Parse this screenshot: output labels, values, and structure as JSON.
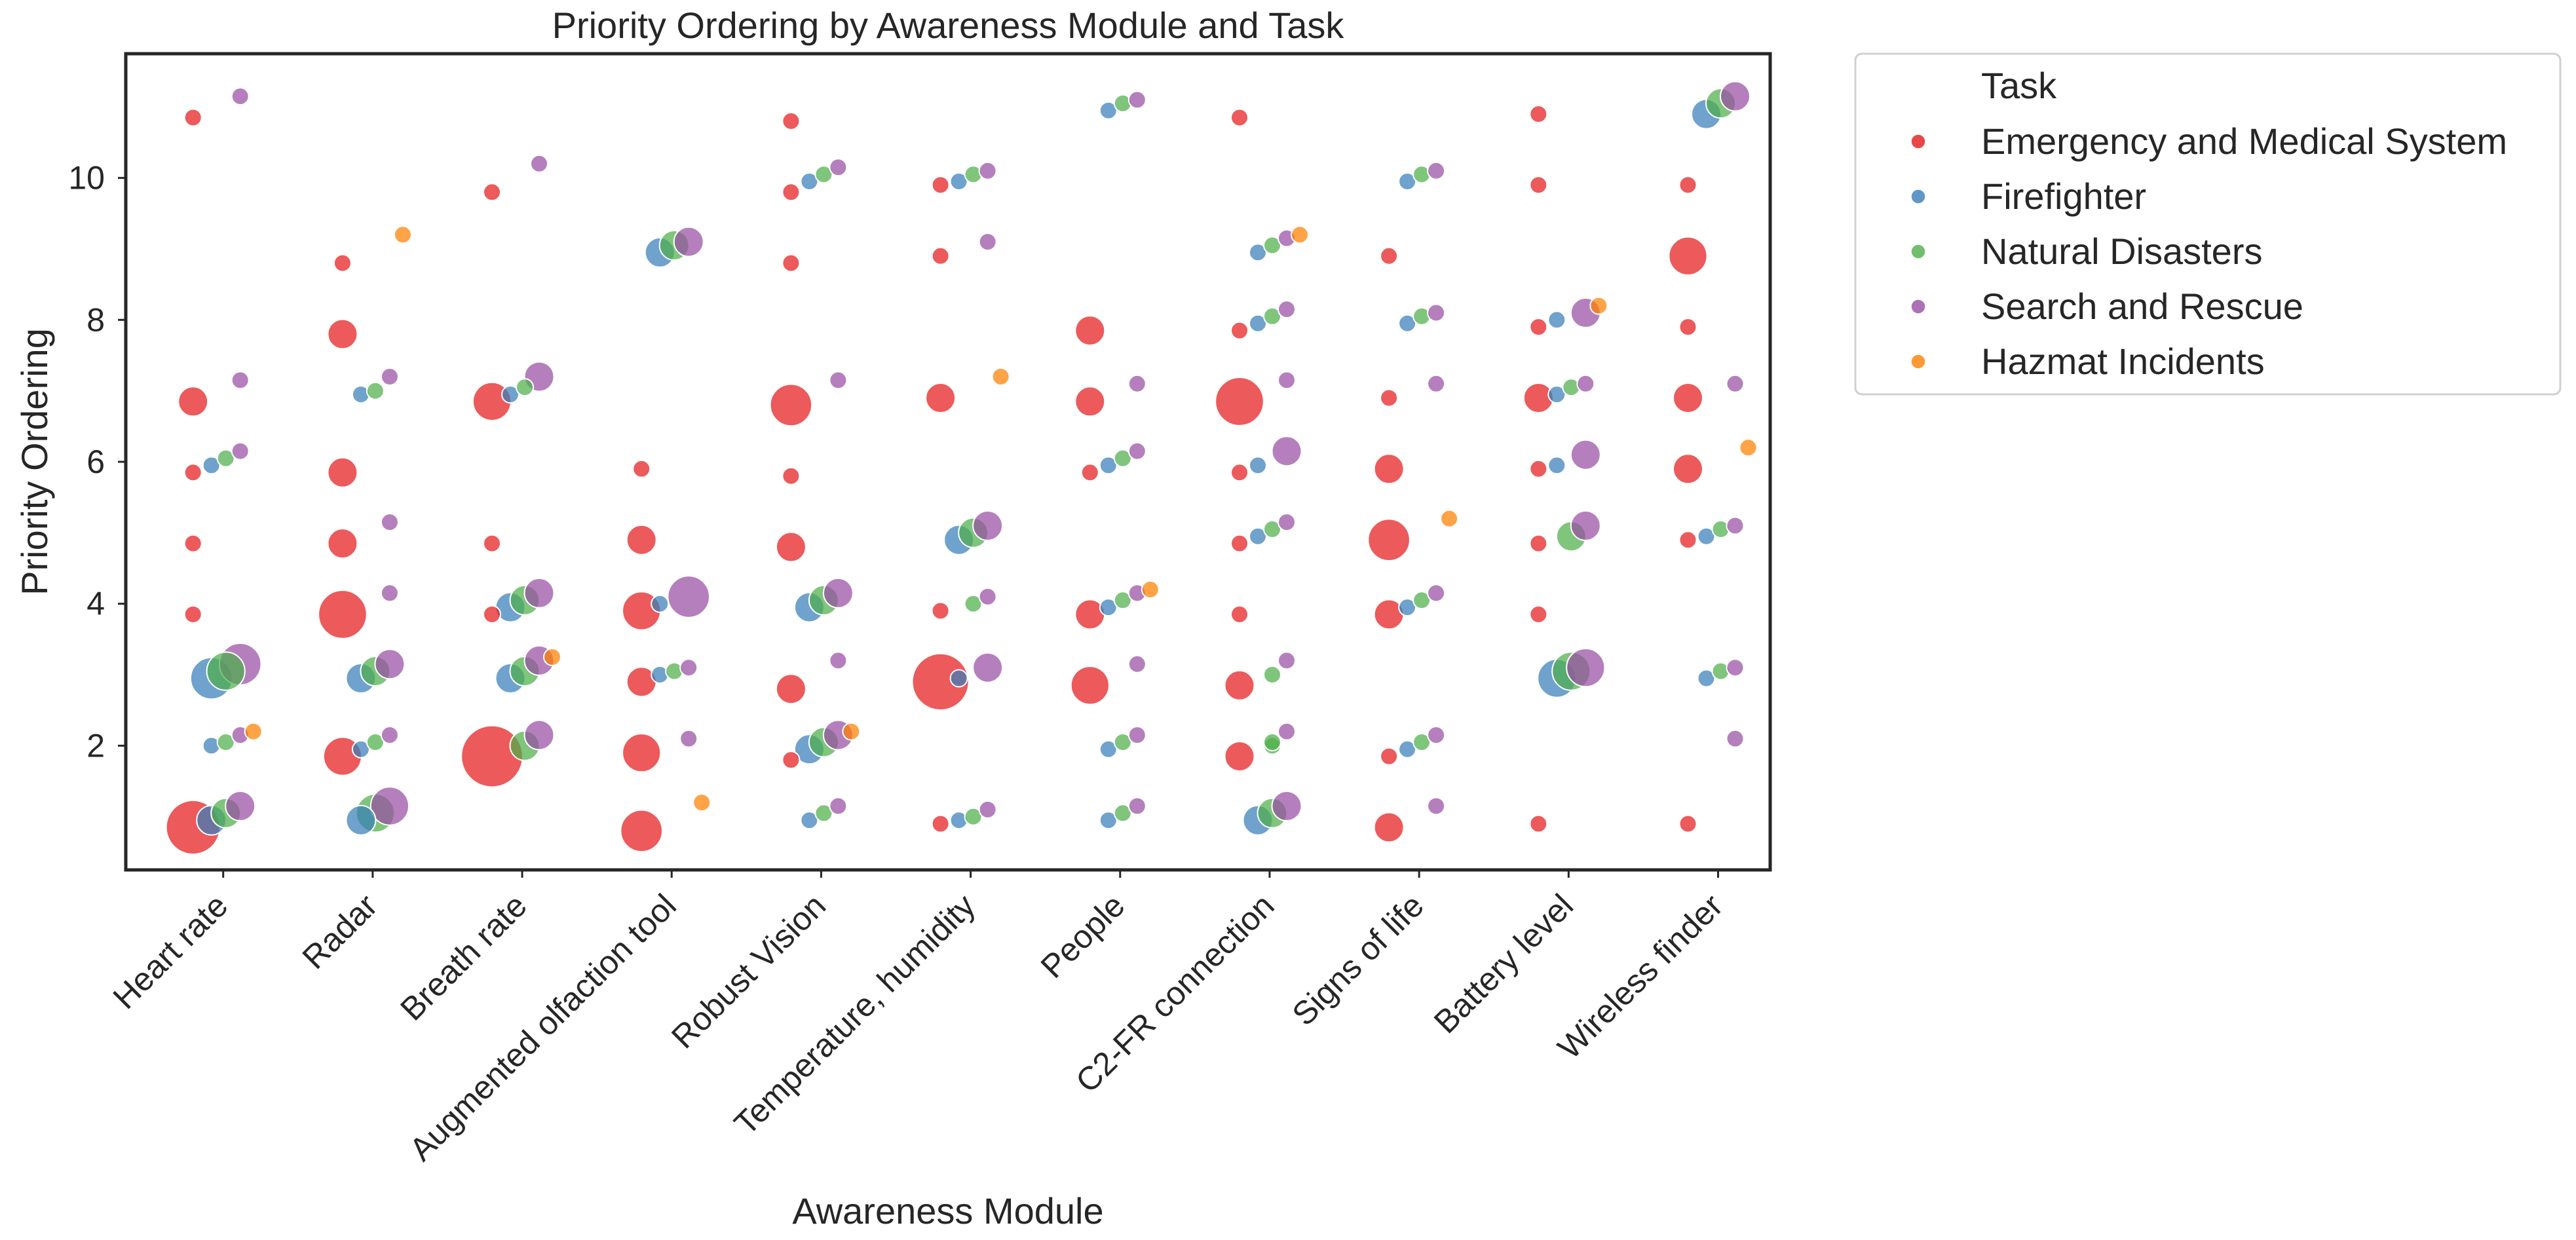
{
  "chart_data": {
    "type": "scatter",
    "title": "Priority Ordering by Awareness Module and Task",
    "xlabel": "Awareness Module",
    "ylabel": "Priority Ordering",
    "ylim": [
      0.25,
      11.75
    ],
    "yticks": [
      2,
      4,
      6,
      8,
      10
    ],
    "grid": false,
    "legend": {
      "title": "Task",
      "position": "outside-right"
    },
    "categories": [
      "Heart rate",
      "Radar",
      "Breath rate",
      "Augmented olfaction tool",
      "Robust Vision",
      "Temperature, humidity",
      "People",
      "C2-FR connection",
      "Signs of life",
      "Battery level",
      "Wireless finder"
    ],
    "series": [
      {
        "name": "Emergency and Medical System",
        "color": "#e41a1c"
      },
      {
        "name": "Firefighter",
        "color": "#377eb8"
      },
      {
        "name": "Natural Disasters",
        "color": "#4daf4a"
      },
      {
        "name": "Search and Rescue",
        "color": "#984ea3"
      },
      {
        "name": "Hazmat Incidents",
        "color": "#ff7f00"
      }
    ],
    "points_note": "each point: [category_index, series_index, priority_ordering, count]",
    "points": [
      [
        0,
        0,
        10.85,
        1
      ],
      [
        0,
        3,
        11.15,
        1
      ],
      [
        0,
        0,
        6.85,
        3
      ],
      [
        0,
        3,
        7.15,
        1
      ],
      [
        0,
        0,
        5.85,
        1
      ],
      [
        0,
        1,
        5.95,
        1
      ],
      [
        0,
        2,
        6.05,
        1
      ],
      [
        0,
        3,
        6.15,
        1
      ],
      [
        0,
        0,
        4.85,
        1
      ],
      [
        0,
        0,
        3.85,
        1
      ],
      [
        0,
        1,
        2.95,
        6
      ],
      [
        0,
        2,
        3.05,
        5
      ],
      [
        0,
        3,
        3.15,
        6
      ],
      [
        0,
        1,
        2.0,
        1
      ],
      [
        0,
        2,
        2.05,
        1
      ],
      [
        0,
        3,
        2.15,
        1
      ],
      [
        0,
        4,
        2.2,
        1
      ],
      [
        0,
        0,
        0.85,
        10
      ],
      [
        0,
        1,
        0.95,
        3
      ],
      [
        0,
        2,
        1.05,
        3
      ],
      [
        0,
        3,
        1.15,
        3
      ],
      [
        1,
        0,
        8.8,
        1
      ],
      [
        1,
        4,
        9.2,
        1
      ],
      [
        1,
        0,
        7.8,
        3
      ],
      [
        1,
        1,
        6.95,
        1
      ],
      [
        1,
        2,
        7.0,
        1
      ],
      [
        1,
        3,
        7.2,
        1
      ],
      [
        1,
        0,
        5.85,
        3
      ],
      [
        1,
        3,
        5.15,
        1
      ],
      [
        1,
        0,
        4.85,
        3
      ],
      [
        1,
        0,
        3.85,
        8
      ],
      [
        1,
        3,
        4.15,
        1
      ],
      [
        1,
        1,
        2.95,
        3
      ],
      [
        1,
        2,
        3.05,
        3
      ],
      [
        1,
        3,
        3.15,
        3
      ],
      [
        1,
        0,
        1.85,
        5
      ],
      [
        1,
        1,
        1.95,
        1
      ],
      [
        1,
        2,
        2.05,
        1
      ],
      [
        1,
        3,
        2.15,
        1
      ],
      [
        1,
        1,
        0.95,
        3
      ],
      [
        1,
        2,
        1.05,
        5
      ],
      [
        1,
        3,
        1.15,
        5
      ],
      [
        2,
        0,
        9.8,
        1
      ],
      [
        2,
        3,
        10.2,
        1
      ],
      [
        2,
        0,
        6.85,
        5
      ],
      [
        2,
        1,
        6.95,
        1
      ],
      [
        2,
        2,
        7.05,
        1
      ],
      [
        2,
        3,
        7.2,
        3
      ],
      [
        2,
        0,
        4.85,
        1
      ],
      [
        2,
        0,
        3.85,
        1
      ],
      [
        2,
        1,
        3.95,
        3
      ],
      [
        2,
        2,
        4.05,
        3
      ],
      [
        2,
        3,
        4.15,
        3
      ],
      [
        2,
        1,
        2.95,
        3
      ],
      [
        2,
        2,
        3.05,
        3
      ],
      [
        2,
        3,
        3.2,
        3
      ],
      [
        2,
        4,
        3.25,
        1
      ],
      [
        2,
        0,
        1.85,
        13
      ],
      [
        2,
        2,
        2.0,
        3
      ],
      [
        2,
        3,
        2.15,
        3
      ],
      [
        3,
        1,
        8.95,
        3
      ],
      [
        3,
        2,
        9.05,
        3
      ],
      [
        3,
        3,
        9.1,
        3
      ],
      [
        3,
        0,
        5.9,
        1
      ],
      [
        3,
        0,
        4.9,
        3
      ],
      [
        3,
        3,
        4.1,
        6
      ],
      [
        3,
        0,
        3.9,
        5
      ],
      [
        3,
        1,
        4.0,
        1
      ],
      [
        3,
        0,
        2.9,
        3
      ],
      [
        3,
        1,
        3.0,
        1
      ],
      [
        3,
        2,
        3.05,
        1
      ],
      [
        3,
        3,
        3.1,
        1
      ],
      [
        3,
        0,
        1.9,
        5
      ],
      [
        3,
        3,
        2.1,
        1
      ],
      [
        3,
        4,
        1.2,
        1
      ],
      [
        3,
        0,
        0.8,
        6
      ],
      [
        4,
        0,
        10.8,
        1
      ],
      [
        4,
        0,
        9.8,
        1
      ],
      [
        4,
        1,
        9.95,
        1
      ],
      [
        4,
        2,
        10.05,
        1
      ],
      [
        4,
        3,
        10.15,
        1
      ],
      [
        4,
        0,
        8.8,
        1
      ],
      [
        4,
        0,
        6.8,
        6
      ],
      [
        4,
        3,
        7.15,
        1
      ],
      [
        4,
        0,
        5.8,
        1
      ],
      [
        4,
        0,
        4.8,
        3
      ],
      [
        4,
        1,
        3.95,
        3
      ],
      [
        4,
        2,
        4.05,
        3
      ],
      [
        4,
        3,
        4.15,
        3
      ],
      [
        4,
        0,
        2.8,
        3
      ],
      [
        4,
        3,
        3.2,
        1
      ],
      [
        4,
        0,
        1.8,
        1
      ],
      [
        4,
        1,
        1.95,
        3
      ],
      [
        4,
        2,
        2.05,
        3
      ],
      [
        4,
        3,
        2.15,
        3
      ],
      [
        4,
        4,
        2.2,
        1
      ],
      [
        4,
        1,
        0.95,
        1
      ],
      [
        4,
        2,
        1.05,
        1
      ],
      [
        4,
        3,
        1.15,
        1
      ],
      [
        5,
        0,
        9.9,
        1
      ],
      [
        5,
        1,
        9.95,
        1
      ],
      [
        5,
        2,
        10.05,
        1
      ],
      [
        5,
        3,
        10.1,
        1
      ],
      [
        5,
        0,
        8.9,
        1
      ],
      [
        5,
        3,
        9.1,
        1
      ],
      [
        5,
        0,
        6.9,
        3
      ],
      [
        5,
        4,
        7.2,
        1
      ],
      [
        5,
        1,
        4.9,
        3
      ],
      [
        5,
        2,
        5.0,
        3
      ],
      [
        5,
        3,
        5.1,
        3
      ],
      [
        5,
        0,
        3.9,
        1
      ],
      [
        5,
        2,
        4.0,
        1
      ],
      [
        5,
        3,
        4.1,
        1
      ],
      [
        5,
        0,
        2.9,
        11
      ],
      [
        5,
        1,
        2.95,
        1
      ],
      [
        5,
        3,
        3.1,
        3
      ],
      [
        5,
        0,
        0.9,
        1
      ],
      [
        5,
        1,
        0.95,
        1
      ],
      [
        5,
        2,
        1.0,
        1
      ],
      [
        5,
        3,
        1.1,
        1
      ],
      [
        6,
        1,
        10.95,
        1
      ],
      [
        6,
        2,
        11.05,
        1
      ],
      [
        6,
        3,
        11.1,
        1
      ],
      [
        6,
        0,
        7.85,
        3
      ],
      [
        6,
        0,
        6.85,
        3
      ],
      [
        6,
        3,
        7.1,
        1
      ],
      [
        6,
        0,
        5.85,
        1
      ],
      [
        6,
        1,
        5.95,
        1
      ],
      [
        6,
        2,
        6.05,
        1
      ],
      [
        6,
        3,
        6.15,
        1
      ],
      [
        6,
        0,
        3.85,
        3
      ],
      [
        6,
        1,
        3.95,
        1
      ],
      [
        6,
        2,
        4.05,
        1
      ],
      [
        6,
        3,
        4.15,
        1
      ],
      [
        6,
        4,
        4.2,
        1
      ],
      [
        6,
        0,
        2.85,
        5
      ],
      [
        6,
        3,
        3.15,
        1
      ],
      [
        6,
        1,
        1.95,
        1
      ],
      [
        6,
        2,
        2.05,
        1
      ],
      [
        6,
        3,
        2.15,
        1
      ],
      [
        6,
        1,
        0.95,
        1
      ],
      [
        6,
        2,
        1.05,
        1
      ],
      [
        6,
        3,
        1.15,
        1
      ],
      [
        7,
        0,
        10.85,
        1
      ],
      [
        7,
        1,
        8.95,
        1
      ],
      [
        7,
        2,
        9.05,
        1
      ],
      [
        7,
        3,
        9.15,
        1
      ],
      [
        7,
        4,
        9.2,
        1
      ],
      [
        7,
        0,
        7.85,
        1
      ],
      [
        7,
        1,
        7.95,
        1
      ],
      [
        7,
        2,
        8.05,
        1
      ],
      [
        7,
        3,
        8.15,
        1
      ],
      [
        7,
        0,
        6.85,
        8
      ],
      [
        7,
        3,
        7.15,
        1
      ],
      [
        7,
        0,
        5.85,
        1
      ],
      [
        7,
        1,
        5.95,
        1
      ],
      [
        7,
        3,
        6.15,
        3
      ],
      [
        7,
        0,
        4.85,
        1
      ],
      [
        7,
        1,
        4.95,
        1
      ],
      [
        7,
        2,
        5.05,
        1
      ],
      [
        7,
        3,
        5.15,
        1
      ],
      [
        7,
        0,
        3.85,
        1
      ],
      [
        7,
        0,
        2.85,
        3
      ],
      [
        7,
        2,
        3.0,
        1
      ],
      [
        7,
        3,
        3.2,
        1
      ],
      [
        7,
        0,
        1.85,
        3
      ],
      [
        7,
        2,
        2.0,
        1
      ],
      [
        7,
        2,
        2.05,
        1
      ],
      [
        7,
        3,
        2.2,
        1
      ],
      [
        7,
        1,
        0.95,
        3
      ],
      [
        7,
        2,
        1.05,
        3
      ],
      [
        7,
        3,
        1.15,
        3
      ],
      [
        8,
        1,
        9.95,
        1
      ],
      [
        8,
        2,
        10.05,
        1
      ],
      [
        8,
        3,
        10.1,
        1
      ],
      [
        8,
        0,
        8.9,
        1
      ],
      [
        8,
        1,
        7.95,
        1
      ],
      [
        8,
        2,
        8.05,
        1
      ],
      [
        8,
        3,
        8.1,
        1
      ],
      [
        8,
        0,
        6.9,
        1
      ],
      [
        8,
        3,
        7.1,
        1
      ],
      [
        8,
        0,
        5.9,
        3
      ],
      [
        8,
        4,
        5.2,
        1
      ],
      [
        8,
        0,
        4.9,
        6
      ],
      [
        8,
        0,
        3.85,
        3
      ],
      [
        8,
        1,
        3.95,
        1
      ],
      [
        8,
        2,
        4.05,
        1
      ],
      [
        8,
        3,
        4.15,
        1
      ],
      [
        8,
        0,
        1.85,
        1
      ],
      [
        8,
        1,
        1.95,
        1
      ],
      [
        8,
        2,
        2.05,
        1
      ],
      [
        8,
        3,
        2.15,
        1
      ],
      [
        8,
        3,
        1.15,
        1
      ],
      [
        8,
        0,
        0.85,
        3
      ],
      [
        9,
        0,
        10.9,
        1
      ],
      [
        9,
        0,
        9.9,
        1
      ],
      [
        9,
        0,
        7.9,
        1
      ],
      [
        9,
        1,
        8.0,
        1
      ],
      [
        9,
        3,
        8.1,
        3
      ],
      [
        9,
        4,
        8.2,
        1
      ],
      [
        9,
        0,
        6.9,
        3
      ],
      [
        9,
        1,
        6.95,
        1
      ],
      [
        9,
        2,
        7.05,
        1
      ],
      [
        9,
        3,
        7.1,
        1
      ],
      [
        9,
        0,
        5.9,
        1
      ],
      [
        9,
        1,
        5.95,
        1
      ],
      [
        9,
        3,
        6.1,
        3
      ],
      [
        9,
        0,
        4.85,
        1
      ],
      [
        9,
        2,
        4.95,
        3
      ],
      [
        9,
        3,
        5.1,
        3
      ],
      [
        9,
        0,
        3.85,
        1
      ],
      [
        9,
        1,
        2.95,
        5
      ],
      [
        9,
        2,
        3.05,
        5
      ],
      [
        9,
        3,
        3.1,
        5
      ],
      [
        9,
        0,
        0.9,
        1
      ],
      [
        10,
        1,
        10.9,
        3
      ],
      [
        10,
        2,
        11.05,
        3
      ],
      [
        10,
        3,
        11.15,
        3
      ],
      [
        10,
        0,
        9.9,
        1
      ],
      [
        10,
        0,
        8.9,
        5
      ],
      [
        10,
        0,
        7.9,
        1
      ],
      [
        10,
        0,
        6.9,
        3
      ],
      [
        10,
        3,
        7.1,
        1
      ],
      [
        10,
        0,
        5.9,
        3
      ],
      [
        10,
        4,
        6.2,
        1
      ],
      [
        10,
        0,
        4.9,
        1
      ],
      [
        10,
        1,
        4.95,
        1
      ],
      [
        10,
        2,
        5.05,
        1
      ],
      [
        10,
        3,
        5.1,
        1
      ],
      [
        10,
        1,
        2.95,
        1
      ],
      [
        10,
        2,
        3.05,
        1
      ],
      [
        10,
        3,
        3.1,
        1
      ],
      [
        10,
        3,
        2.1,
        1
      ],
      [
        10,
        0,
        0.9,
        1
      ]
    ]
  }
}
